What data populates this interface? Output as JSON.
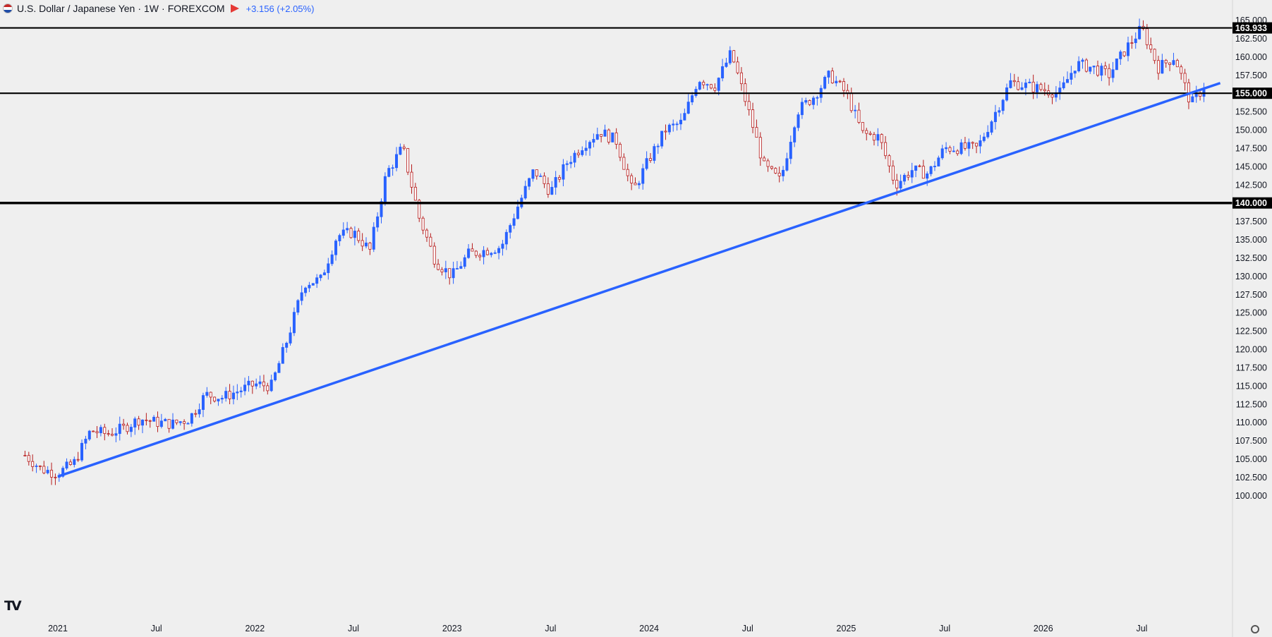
{
  "header": {
    "symbol": "U.S. Dollar / Japanese Yen",
    "timeframe": "1W",
    "exchange": "FOREXCOM",
    "separator": "·",
    "change": "+3.156 (+2.05%)"
  },
  "chart_data": {
    "type": "candlestick",
    "title": "U.S. Dollar / Japanese Yen · 1W · FOREXCOM",
    "ylim": [
      100,
      165
    ],
    "y_ticks": [
      "165.000",
      "162.500",
      "160.000",
      "157.500",
      "155.000",
      "152.500",
      "150.000",
      "147.500",
      "145.000",
      "142.500",
      "140.000",
      "137.500",
      "135.000",
      "132.500",
      "130.000",
      "127.500",
      "125.000",
      "122.500",
      "120.000",
      "117.500",
      "115.000",
      "112.500",
      "110.000",
      "107.500",
      "105.000",
      "102.500",
      "100.000"
    ],
    "x_ticks": [
      "2021",
      "Jul",
      "2022",
      "Jul",
      "2023",
      "Jul",
      "2024",
      "Jul",
      "2025",
      "Jul",
      "2026",
      "Jul"
    ],
    "horizontal_levels": [
      {
        "value": 163.933,
        "label": "163.933"
      },
      {
        "value": 155.0,
        "label": "155.000"
      },
      {
        "value": 140.0,
        "label": "140.000"
      }
    ],
    "trendline": {
      "color": "#2962ff",
      "from": {
        "date": "2021-01",
        "value": 102.6
      },
      "to": {
        "date": "2026-11",
        "value": 156.0
      }
    },
    "up_color": "#2962ff",
    "down_color": "#b71c1c",
    "anchors": [
      [
        "2020-11",
        105.5
      ],
      [
        "2020-12",
        103.6
      ],
      [
        "2021-01",
        103.0
      ],
      [
        "2021-02",
        104.5
      ],
      [
        "2021-03",
        108.9
      ],
      [
        "2021-04",
        108.4
      ],
      [
        "2021-05",
        109.2
      ],
      [
        "2021-06",
        110.5
      ],
      [
        "2021-07",
        110.0
      ],
      [
        "2021-08",
        109.8
      ],
      [
        "2021-09",
        110.5
      ],
      [
        "2021-10",
        113.8
      ],
      [
        "2021-11",
        113.4
      ],
      [
        "2021-12",
        114.3
      ],
      [
        "2022-01",
        115.2
      ],
      [
        "2022-02",
        115.0
      ],
      [
        "2022-03",
        121.5
      ],
      [
        "2022-04",
        129.0
      ],
      [
        "2022-05",
        129.5
      ],
      [
        "2022-06",
        135.5
      ],
      [
        "2022-07",
        136.0
      ],
      [
        "2022-08",
        133.5
      ],
      [
        "2022-09",
        144.0
      ],
      [
        "2022-10",
        147.6
      ],
      [
        "2022-11",
        138.0
      ],
      [
        "2022-12",
        132.0
      ],
      [
        "2023-01",
        130.0
      ],
      [
        "2023-02",
        133.0
      ],
      [
        "2023-03",
        133.5
      ],
      [
        "2023-04",
        134.0
      ],
      [
        "2023-05",
        139.5
      ],
      [
        "2023-06",
        144.5
      ],
      [
        "2023-07",
        141.5
      ],
      [
        "2023-08",
        145.5
      ],
      [
        "2023-09",
        148.0
      ],
      [
        "2023-10",
        149.8
      ],
      [
        "2023-11",
        148.5
      ],
      [
        "2023-12",
        141.5
      ],
      [
        "2024-01",
        146.0
      ],
      [
        "2024-02",
        150.0
      ],
      [
        "2024-03",
        151.0
      ],
      [
        "2024-04",
        157.0
      ],
      [
        "2024-05",
        156.0
      ],
      [
        "2024-06",
        160.5
      ],
      [
        "2024-07",
        153.0
      ],
      [
        "2024-08",
        145.0
      ],
      [
        "2024-09",
        143.0
      ],
      [
        "2024-10",
        152.5
      ],
      [
        "2024-11",
        154.5
      ],
      [
        "2024-12",
        157.5
      ],
      [
        "2025-01",
        155.0
      ],
      [
        "2025-02",
        149.5
      ],
      [
        "2025-03",
        149.0
      ],
      [
        "2025-04",
        142.5
      ],
      [
        "2025-05",
        144.5
      ],
      [
        "2025-06",
        144.0
      ],
      [
        "2025-07",
        147.5
      ],
      [
        "2025-08",
        147.5
      ],
      [
        "2025-09",
        147.5
      ],
      [
        "2025-10",
        152.0
      ],
      [
        "2025-11",
        156.5
      ],
      [
        "2025-12",
        156.0
      ],
      [
        "2026-01",
        155.5
      ],
      [
        "2026-02",
        155.0
      ],
      [
        "2026-03",
        159.0
      ],
      [
        "2026-04",
        158.5
      ],
      [
        "2026-05",
        157.5
      ],
      [
        "2026-06",
        161.0
      ],
      [
        "2026-07",
        163.9
      ],
      [
        "2026-08",
        158.5
      ],
      [
        "2026-09",
        160.0
      ],
      [
        "2026-10",
        153.5
      ],
      [
        "2026-11",
        156.5
      ]
    ]
  }
}
